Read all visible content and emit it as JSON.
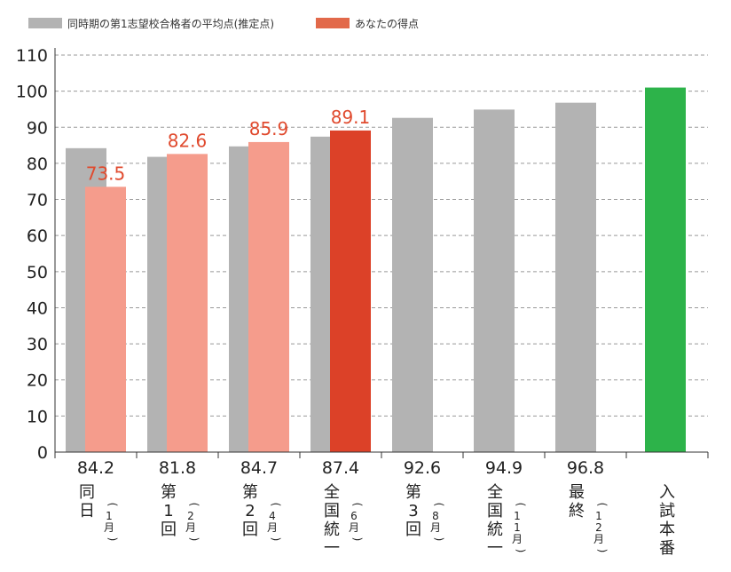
{
  "legend": {
    "series1_label": "同時期の第1志望校合格者の平均点(推定点)",
    "series2_label": "あなたの得点"
  },
  "colors": {
    "average": "#b3b3b3",
    "score_light": "#f59c8c",
    "score_highlight": "#dc4128",
    "final": "#2db34a",
    "grid": "#999999",
    "score_label": "#e04a2e"
  },
  "chart_data": {
    "type": "bar",
    "ylim": [
      0,
      110
    ],
    "yticks": [
      0,
      10,
      20,
      30,
      40,
      50,
      60,
      70,
      80,
      90,
      100,
      110
    ],
    "grid": true,
    "legend_position": "top-left",
    "categories": [
      {
        "main": "同日",
        "sub": "(1月)"
      },
      {
        "main": "第1回",
        "sub": "(2月)"
      },
      {
        "main": "第2回",
        "sub": "(4月)"
      },
      {
        "main": "全国統一",
        "sub": "(6月)"
      },
      {
        "main": "第3回",
        "sub": "(8月)"
      },
      {
        "main": "全国統一",
        "sub": "(11月)"
      },
      {
        "main": "最終",
        "sub": "(12月)"
      },
      {
        "main": "入試本番",
        "sub": ""
      }
    ],
    "average_labels": [
      "84.2",
      "81.8",
      "84.7",
      "87.4",
      "92.6",
      "94.9",
      "96.8",
      ""
    ],
    "series": [
      {
        "name": "同時期の第1志望校合格者の平均点(推定点)",
        "values": [
          84.2,
          81.8,
          84.7,
          87.4,
          92.6,
          94.9,
          96.8,
          null
        ]
      },
      {
        "name": "あなたの得点",
        "values": [
          73.5,
          82.6,
          85.9,
          89.1,
          null,
          null,
          null,
          null
        ],
        "highlight_index": 3
      }
    ],
    "final_target": {
      "category_index": 7,
      "value": 101
    },
    "score_labels": [
      "73.5",
      "82.6",
      "85.9",
      "89.1"
    ]
  }
}
